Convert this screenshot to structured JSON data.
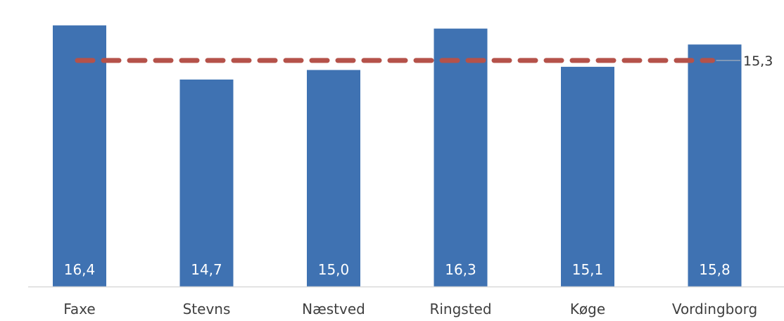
{
  "chart_data": {
    "type": "bar",
    "title": "",
    "xlabel": "",
    "ylabel": "",
    "categories": [
      "Faxe",
      "Stevns",
      "Næstved",
      "Ringsted",
      "Køge",
      "Vordingborg"
    ],
    "series": [
      {
        "values": [
          16.4,
          14.7,
          15.0,
          16.3,
          15.1,
          15.8
        ],
        "data_labels": [
          "16,4",
          "14,7",
          "15,0",
          "16,3",
          "15,1",
          "15,8"
        ]
      }
    ],
    "reference_line": {
      "value": 15.3,
      "label": "15,3",
      "style": "dashed",
      "color": "#b5524a"
    },
    "ylim": [
      8.2,
      16.8
    ],
    "grid": false,
    "legend": "none",
    "colors": {
      "bar": "#3f72b2",
      "baseline": "#d9d9d9",
      "leader": "#bfbfbf"
    }
  }
}
